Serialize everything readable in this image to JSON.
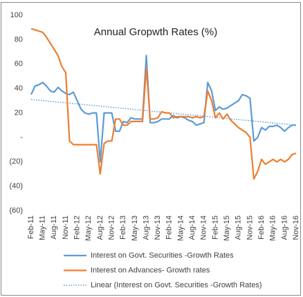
{
  "chart_data": {
    "type": "line",
    "title": "Annual Gropwth Rates (%)",
    "categories": [
      "Feb-11",
      null,
      null,
      "May-11",
      null,
      null,
      "Aug-11",
      null,
      null,
      "Nov-11",
      null,
      null,
      "Feb-12",
      null,
      null,
      "May-12",
      null,
      null,
      "Aug-12",
      null,
      null,
      "Nov-12",
      null,
      null,
      "Feb-13",
      null,
      null,
      "May-13",
      null,
      null,
      "Aug-13",
      null,
      null,
      "Nov-13",
      null,
      null,
      "Feb-14",
      null,
      null,
      "May-14",
      null,
      null,
      "Aug-14",
      null,
      null,
      "Nov-14",
      null,
      null,
      "Feb-15",
      null,
      null,
      "May-15",
      null,
      null,
      "Aug-15",
      null,
      null,
      "Nov-15",
      null,
      null,
      "Feb-16",
      null,
      null,
      "May-16",
      null,
      null,
      "Aug-16",
      null,
      null,
      "Nov-16"
    ],
    "series": [
      {
        "name": "Interest on Govt. Securities -Growth Rates",
        "color": "#5b9bd5",
        "values": [
          35,
          42,
          43,
          45,
          42,
          38,
          37,
          41,
          38,
          36,
          35,
          37,
          30,
          23,
          20,
          19,
          20,
          20,
          -20,
          20,
          20,
          20,
          5,
          5,
          13,
          12,
          16,
          15,
          15,
          15,
          67,
          12,
          12,
          13,
          15,
          15,
          15,
          18,
          16,
          17,
          16,
          14,
          13,
          10,
          11,
          12,
          45,
          38,
          22,
          25,
          23,
          24,
          26,
          28,
          30,
          35,
          34,
          32,
          -3,
          0,
          8,
          6,
          9,
          9,
          10,
          8,
          5,
          8,
          10,
          10
        ]
      },
      {
        "name": "Interest on Advances- Growth rates",
        "color": "#ed7d31",
        "values": [
          89,
          88,
          87,
          86,
          82,
          77,
          72,
          67,
          58,
          53,
          -3,
          -6,
          -6,
          -6,
          -6,
          -6,
          -6,
          -6,
          -30,
          -5,
          -3,
          -3,
          15,
          15,
          10,
          10,
          13,
          13,
          13,
          13,
          57,
          15,
          15,
          16,
          21,
          20,
          20,
          16,
          17,
          17,
          17,
          17,
          16,
          17,
          16,
          17,
          38,
          30,
          16,
          20,
          15,
          19,
          14,
          11,
          8,
          6,
          4,
          0,
          -34,
          -28,
          -18,
          -22,
          -20,
          -18,
          -20,
          -18,
          -20,
          -18,
          -14,
          -13
        ]
      }
    ],
    "trendline": {
      "name": "Linear (Interest on Govt. Securities -Growth Rates)",
      "color": "#5b9bd5",
      "values": [
        31,
        10
      ]
    },
    "ylim": [
      -60,
      100
    ],
    "yticks": [
      100,
      80,
      60,
      40,
      20,
      {
        "value": 0,
        "label": "-"
      },
      {
        "value": -20,
        "label": "(20)"
      },
      {
        "value": -40,
        "label": "(40)"
      },
      {
        "value": -60,
        "label": "(60)"
      }
    ],
    "grid": false
  }
}
